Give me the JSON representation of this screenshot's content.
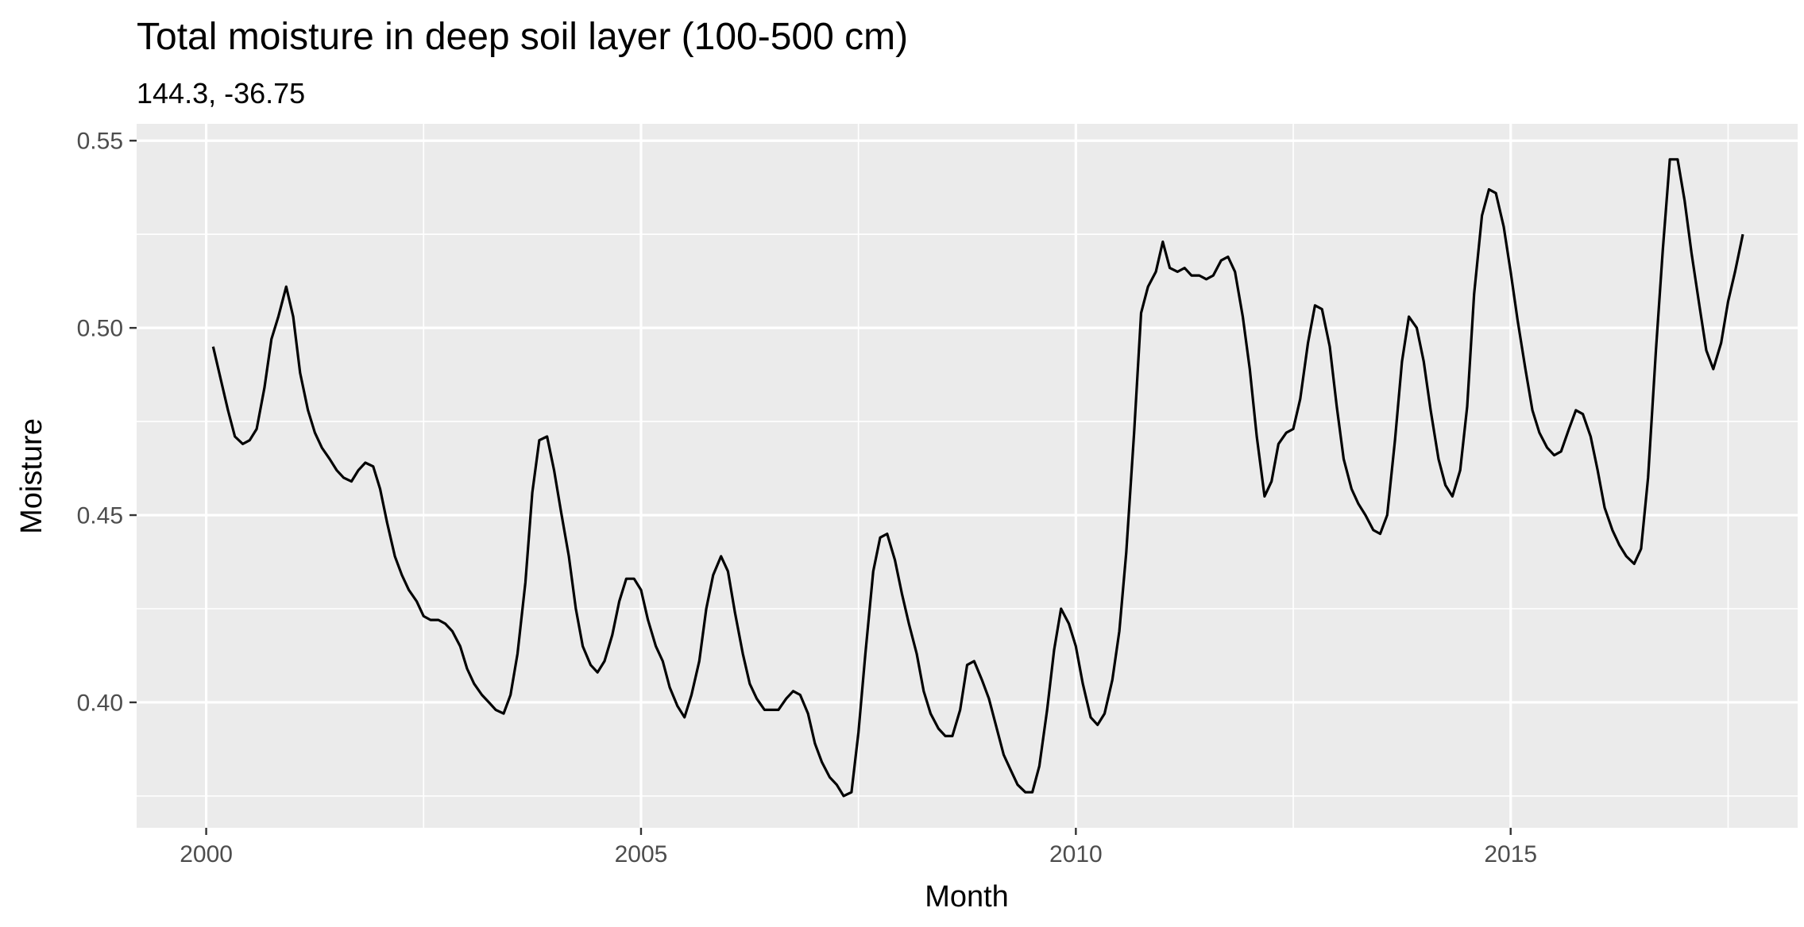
{
  "chart_data": {
    "type": "line",
    "title": "Total moisture in deep soil layer (100-500 cm)",
    "subtitle": "144.3, -36.75",
    "xlabel": "Month",
    "ylabel": "Moisture",
    "x_ticks": [
      "2000",
      "2005",
      "2010",
      "2015"
    ],
    "y_ticks": [
      "0.40",
      "0.45",
      "0.50",
      "0.55"
    ],
    "xlim": [
      1999.2,
      2018.3
    ],
    "ylim": [
      0.3665,
      0.5545
    ],
    "grid": true,
    "panel_background": "#ebebeb",
    "line_color": "#000000",
    "series": [
      {
        "values": [
          [
            2000.08,
            0.495
          ],
          [
            2000.17,
            0.486
          ],
          [
            2000.25,
            0.478
          ],
          [
            2000.33,
            0.471
          ],
          [
            2000.42,
            0.469
          ],
          [
            2000.5,
            0.47
          ],
          [
            2000.58,
            0.473
          ],
          [
            2000.67,
            0.484
          ],
          [
            2000.75,
            0.497
          ],
          [
            2000.83,
            0.503
          ],
          [
            2000.92,
            0.511
          ],
          [
            2001.0,
            0.503
          ],
          [
            2001.08,
            0.488
          ],
          [
            2001.17,
            0.478
          ],
          [
            2001.25,
            0.472
          ],
          [
            2001.33,
            0.468
          ],
          [
            2001.42,
            0.465
          ],
          [
            2001.5,
            0.462
          ],
          [
            2001.58,
            0.46
          ],
          [
            2001.67,
            0.459
          ],
          [
            2001.75,
            0.462
          ],
          [
            2001.83,
            0.464
          ],
          [
            2001.92,
            0.463
          ],
          [
            2002.0,
            0.457
          ],
          [
            2002.08,
            0.448
          ],
          [
            2002.17,
            0.439
          ],
          [
            2002.25,
            0.434
          ],
          [
            2002.33,
            0.43
          ],
          [
            2002.42,
            0.427
          ],
          [
            2002.5,
            0.423
          ],
          [
            2002.58,
            0.422
          ],
          [
            2002.67,
            0.422
          ],
          [
            2002.75,
            0.421
          ],
          [
            2002.83,
            0.419
          ],
          [
            2002.92,
            0.415
          ],
          [
            2003.0,
            0.409
          ],
          [
            2003.08,
            0.405
          ],
          [
            2003.17,
            0.402
          ],
          [
            2003.25,
            0.4
          ],
          [
            2003.33,
            0.398
          ],
          [
            2003.42,
            0.397
          ],
          [
            2003.5,
            0.402
          ],
          [
            2003.58,
            0.413
          ],
          [
            2003.67,
            0.432
          ],
          [
            2003.75,
            0.456
          ],
          [
            2003.83,
            0.47
          ],
          [
            2003.92,
            0.471
          ],
          [
            2004.0,
            0.462
          ],
          [
            2004.08,
            0.451
          ],
          [
            2004.17,
            0.439
          ],
          [
            2004.25,
            0.425
          ],
          [
            2004.33,
            0.415
          ],
          [
            2004.42,
            0.41
          ],
          [
            2004.5,
            0.408
          ],
          [
            2004.58,
            0.411
          ],
          [
            2004.67,
            0.418
          ],
          [
            2004.75,
            0.427
          ],
          [
            2004.83,
            0.433
          ],
          [
            2004.92,
            0.433
          ],
          [
            2005.0,
            0.43
          ],
          [
            2005.08,
            0.422
          ],
          [
            2005.17,
            0.415
          ],
          [
            2005.25,
            0.411
          ],
          [
            2005.33,
            0.404
          ],
          [
            2005.42,
            0.399
          ],
          [
            2005.5,
            0.396
          ],
          [
            2005.58,
            0.402
          ],
          [
            2005.67,
            0.411
          ],
          [
            2005.75,
            0.425
          ],
          [
            2005.83,
            0.434
          ],
          [
            2005.92,
            0.439
          ],
          [
            2006.0,
            0.435
          ],
          [
            2006.08,
            0.424
          ],
          [
            2006.17,
            0.413
          ],
          [
            2006.25,
            0.405
          ],
          [
            2006.33,
            0.401
          ],
          [
            2006.42,
            0.398
          ],
          [
            2006.5,
            0.398
          ],
          [
            2006.58,
            0.398
          ],
          [
            2006.67,
            0.401
          ],
          [
            2006.75,
            0.403
          ],
          [
            2006.83,
            0.402
          ],
          [
            2006.92,
            0.397
          ],
          [
            2007.0,
            0.389
          ],
          [
            2007.08,
            0.384
          ],
          [
            2007.17,
            0.38
          ],
          [
            2007.25,
            0.378
          ],
          [
            2007.33,
            0.375
          ],
          [
            2007.42,
            0.376
          ],
          [
            2007.5,
            0.392
          ],
          [
            2007.58,
            0.413
          ],
          [
            2007.67,
            0.435
          ],
          [
            2007.75,
            0.444
          ],
          [
            2007.83,
            0.445
          ],
          [
            2007.92,
            0.438
          ],
          [
            2008.0,
            0.429
          ],
          [
            2008.08,
            0.421
          ],
          [
            2008.17,
            0.413
          ],
          [
            2008.25,
            0.403
          ],
          [
            2008.33,
            0.397
          ],
          [
            2008.42,
            0.393
          ],
          [
            2008.5,
            0.391
          ],
          [
            2008.58,
            0.391
          ],
          [
            2008.67,
            0.398
          ],
          [
            2008.75,
            0.41
          ],
          [
            2008.83,
            0.411
          ],
          [
            2008.92,
            0.406
          ],
          [
            2009.0,
            0.401
          ],
          [
            2009.08,
            0.394
          ],
          [
            2009.17,
            0.386
          ],
          [
            2009.25,
            0.382
          ],
          [
            2009.33,
            0.378
          ],
          [
            2009.42,
            0.376
          ],
          [
            2009.5,
            0.376
          ],
          [
            2009.58,
            0.383
          ],
          [
            2009.67,
            0.398
          ],
          [
            2009.75,
            0.414
          ],
          [
            2009.83,
            0.425
          ],
          [
            2009.92,
            0.421
          ],
          [
            2010.0,
            0.415
          ],
          [
            2010.08,
            0.405
          ],
          [
            2010.17,
            0.396
          ],
          [
            2010.25,
            0.394
          ],
          [
            2010.33,
            0.397
          ],
          [
            2010.42,
            0.406
          ],
          [
            2010.5,
            0.419
          ],
          [
            2010.58,
            0.44
          ],
          [
            2010.67,
            0.472
          ],
          [
            2010.75,
            0.504
          ],
          [
            2010.83,
            0.511
          ],
          [
            2010.92,
            0.515
          ],
          [
            2011.0,
            0.523
          ],
          [
            2011.08,
            0.516
          ],
          [
            2011.17,
            0.515
          ],
          [
            2011.25,
            0.516
          ],
          [
            2011.33,
            0.514
          ],
          [
            2011.42,
            0.514
          ],
          [
            2011.5,
            0.513
          ],
          [
            2011.58,
            0.514
          ],
          [
            2011.67,
            0.518
          ],
          [
            2011.75,
            0.519
          ],
          [
            2011.83,
            0.515
          ],
          [
            2011.92,
            0.503
          ],
          [
            2012.0,
            0.489
          ],
          [
            2012.08,
            0.471
          ],
          [
            2012.17,
            0.455
          ],
          [
            2012.25,
            0.459
          ],
          [
            2012.33,
            0.469
          ],
          [
            2012.42,
            0.472
          ],
          [
            2012.5,
            0.473
          ],
          [
            2012.58,
            0.481
          ],
          [
            2012.67,
            0.496
          ],
          [
            2012.75,
            0.506
          ],
          [
            2012.83,
            0.505
          ],
          [
            2012.92,
            0.495
          ],
          [
            2013.0,
            0.479
          ],
          [
            2013.08,
            0.465
          ],
          [
            2013.17,
            0.457
          ],
          [
            2013.25,
            0.453
          ],
          [
            2013.33,
            0.45
          ],
          [
            2013.42,
            0.446
          ],
          [
            2013.5,
            0.445
          ],
          [
            2013.58,
            0.45
          ],
          [
            2013.67,
            0.47
          ],
          [
            2013.75,
            0.491
          ],
          [
            2013.83,
            0.503
          ],
          [
            2013.92,
            0.5
          ],
          [
            2014.0,
            0.491
          ],
          [
            2014.08,
            0.478
          ],
          [
            2014.17,
            0.465
          ],
          [
            2014.25,
            0.458
          ],
          [
            2014.33,
            0.455
          ],
          [
            2014.42,
            0.462
          ],
          [
            2014.5,
            0.479
          ],
          [
            2014.58,
            0.509
          ],
          [
            2014.67,
            0.53
          ],
          [
            2014.75,
            0.537
          ],
          [
            2014.83,
            0.536
          ],
          [
            2014.92,
            0.527
          ],
          [
            2015.0,
            0.515
          ],
          [
            2015.08,
            0.502
          ],
          [
            2015.17,
            0.489
          ],
          [
            2015.25,
            0.478
          ],
          [
            2015.33,
            0.472
          ],
          [
            2015.42,
            0.468
          ],
          [
            2015.5,
            0.466
          ],
          [
            2015.58,
            0.467
          ],
          [
            2015.67,
            0.473
          ],
          [
            2015.75,
            0.478
          ],
          [
            2015.83,
            0.477
          ],
          [
            2015.92,
            0.471
          ],
          [
            2016.0,
            0.462
          ],
          [
            2016.08,
            0.452
          ],
          [
            2016.17,
            0.446
          ],
          [
            2016.25,
            0.442
          ],
          [
            2016.33,
            0.439
          ],
          [
            2016.42,
            0.437
          ],
          [
            2016.5,
            0.441
          ],
          [
            2016.58,
            0.46
          ],
          [
            2016.67,
            0.494
          ],
          [
            2016.75,
            0.521
          ],
          [
            2016.83,
            0.545
          ],
          [
            2016.92,
            0.545
          ],
          [
            2017.0,
            0.534
          ],
          [
            2017.08,
            0.52
          ],
          [
            2017.17,
            0.506
          ],
          [
            2017.25,
            0.494
          ],
          [
            2017.33,
            0.489
          ],
          [
            2017.42,
            0.496
          ],
          [
            2017.5,
            0.507
          ],
          [
            2017.58,
            0.515
          ],
          [
            2017.67,
            0.525
          ]
        ]
      }
    ]
  }
}
